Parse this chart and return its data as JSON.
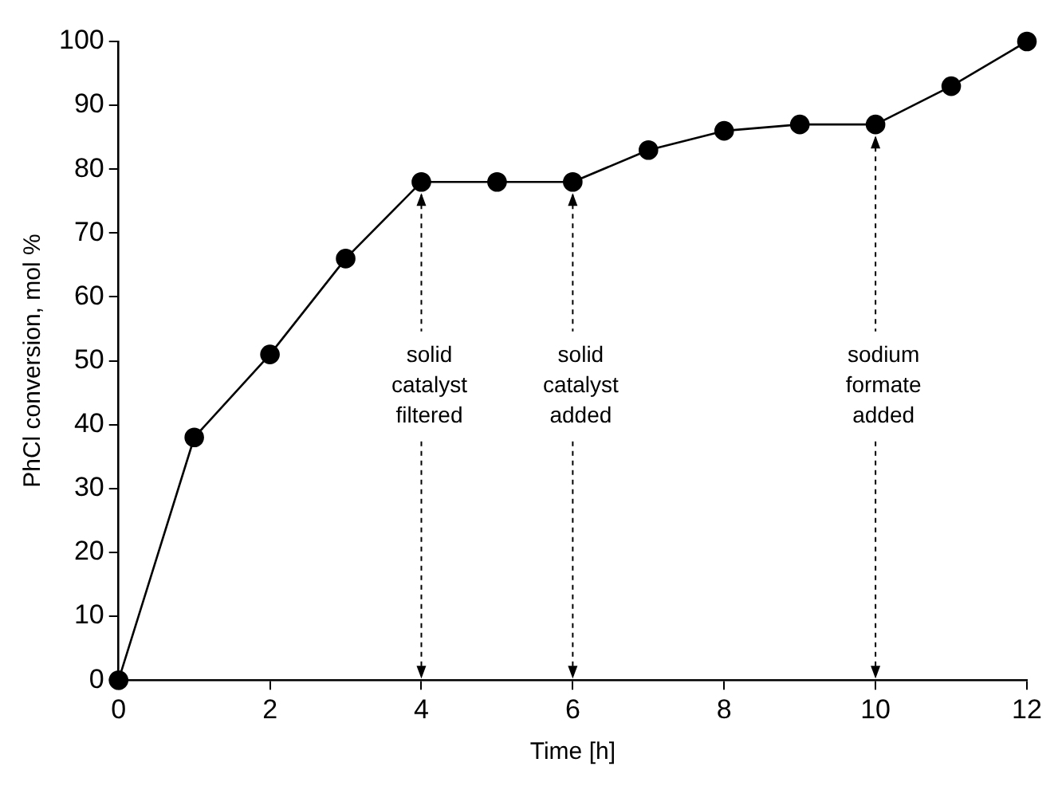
{
  "chart_data": {
    "type": "line",
    "xlabel": "Time [h]",
    "ylabel": "PhCl conversion, mol %",
    "x": [
      0,
      1,
      2,
      3,
      4,
      5,
      6,
      7,
      8,
      9,
      10,
      11,
      12
    ],
    "series": [
      {
        "color": "#000000",
        "values": [
          0,
          38,
          51,
          66,
          78,
          78,
          78,
          83,
          86,
          87,
          87,
          93,
          100
        ]
      }
    ],
    "xlim": [
      0,
      12
    ],
    "xticks": [
      0,
      2,
      4,
      6,
      8,
      10,
      12
    ],
    "ylim": [
      0,
      100
    ],
    "yticks": [
      0,
      10,
      20,
      30,
      40,
      50,
      60,
      70,
      80,
      90,
      100
    ],
    "grid": false,
    "legend": false,
    "marker": "circle",
    "line_style": "solid",
    "annotations": [
      {
        "text": "solid\ncatalyst\nfiltered",
        "x": 4,
        "y": 78
      },
      {
        "text": "solid\ncatalyst\nadded",
        "x": 6,
        "y": 78
      },
      {
        "text": "sodium\nformate\nadded",
        "x": 10,
        "y": 87
      }
    ]
  }
}
